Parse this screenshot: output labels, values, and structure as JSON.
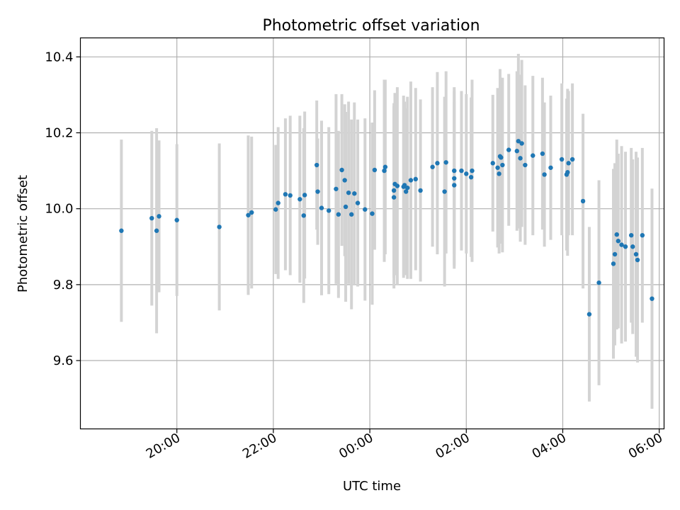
{
  "chart_data": {
    "type": "scatter",
    "title": "Photometric offset variation",
    "xlabel": "UTC time",
    "ylabel": "Photometric offset",
    "xlim": [
      -2.0,
      10.1
    ],
    "ylim": [
      9.42,
      10.45
    ],
    "grid": true,
    "x_ticks": [
      {
        "value": 0,
        "label": "20:00"
      },
      {
        "value": 2,
        "label": "22:00"
      },
      {
        "value": 4,
        "label": "00:00"
      },
      {
        "value": 6,
        "label": "02:00"
      },
      {
        "value": 8,
        "label": "04:00"
      },
      {
        "value": 10,
        "label": "06:00"
      }
    ],
    "y_ticks": [
      {
        "value": 9.6,
        "label": "9.6"
      },
      {
        "value": 9.8,
        "label": "9.8"
      },
      {
        "value": 10.0,
        "label": "10.0"
      },
      {
        "value": 10.2,
        "label": "10.2"
      },
      {
        "value": 10.4,
        "label": "10.4"
      }
    ],
    "x_unit": "hours since 20:00 UTC",
    "colors": {
      "marker": "#1f77b4",
      "errorbar": "#d3d3d3",
      "grid": "#b0b0b0"
    },
    "series": [
      {
        "name": "Photometric offset",
        "points": [
          [
            -1.15,
            9.942,
            0.24
          ],
          [
            -0.52,
            9.975,
            0.23
          ],
          [
            -0.42,
            9.942,
            0.27
          ],
          [
            -0.37,
            9.98,
            0.2
          ],
          [
            0.0,
            9.97,
            0.2
          ],
          [
            0.88,
            9.952,
            0.22
          ],
          [
            1.48,
            9.983,
            0.21
          ],
          [
            1.55,
            9.99,
            0.2
          ],
          [
            2.05,
            9.998,
            0.17
          ],
          [
            2.1,
            10.015,
            0.2
          ],
          [
            2.25,
            10.038,
            0.2
          ],
          [
            2.35,
            10.035,
            0.21
          ],
          [
            2.55,
            10.025,
            0.22
          ],
          [
            2.63,
            9.982,
            0.23
          ],
          [
            2.65,
            10.036,
            0.22
          ],
          [
            2.9,
            10.115,
            0.17
          ],
          [
            2.92,
            10.045,
            0.14
          ],
          [
            3.0,
            10.002,
            0.23
          ],
          [
            3.15,
            9.995,
            0.22
          ],
          [
            3.3,
            10.052,
            0.25
          ],
          [
            3.35,
            9.985,
            0.22
          ],
          [
            3.42,
            10.102,
            0.2
          ],
          [
            3.48,
            10.075,
            0.2
          ],
          [
            3.5,
            10.005,
            0.25
          ],
          [
            3.56,
            10.042,
            0.24
          ],
          [
            3.62,
            9.985,
            0.25
          ],
          [
            3.68,
            10.04,
            0.24
          ],
          [
            3.75,
            10.015,
            0.22
          ],
          [
            3.9,
            9.998,
            0.24
          ],
          [
            4.05,
            9.987,
            0.24
          ],
          [
            4.1,
            10.102,
            0.21
          ],
          [
            4.3,
            10.1,
            0.24
          ],
          [
            4.32,
            10.11,
            0.23
          ],
          [
            4.5,
            10.03,
            0.24
          ],
          [
            4.5,
            10.048,
            0.23
          ],
          [
            4.52,
            10.065,
            0.24
          ],
          [
            4.57,
            10.06,
            0.26
          ],
          [
            4.7,
            10.058,
            0.24
          ],
          [
            4.72,
            10.062,
            0.22
          ],
          [
            4.75,
            10.045,
            0.22
          ],
          [
            4.78,
            10.055,
            0.24
          ],
          [
            4.85,
            10.075,
            0.26
          ],
          [
            4.95,
            10.078,
            0.24
          ],
          [
            5.05,
            10.048,
            0.24
          ],
          [
            5.3,
            10.11,
            0.21
          ],
          [
            5.4,
            10.12,
            0.24
          ],
          [
            5.55,
            10.045,
            0.25
          ],
          [
            5.58,
            10.122,
            0.24
          ],
          [
            5.75,
            10.062,
            0.22
          ],
          [
            5.75,
            10.08,
            0.23
          ],
          [
            5.75,
            10.1,
            0.22
          ],
          [
            5.9,
            10.1,
            0.21
          ],
          [
            6.0,
            10.092,
            0.21
          ],
          [
            6.1,
            10.083,
            0.21
          ],
          [
            6.12,
            10.1,
            0.24
          ],
          [
            6.55,
            10.12,
            0.18
          ],
          [
            6.65,
            10.108,
            0.21
          ],
          [
            6.68,
            10.092,
            0.21
          ],
          [
            6.7,
            10.138,
            0.23
          ],
          [
            6.72,
            10.135,
            0.21
          ],
          [
            6.75,
            10.115,
            0.23
          ],
          [
            6.88,
            10.155,
            0.2
          ],
          [
            7.05,
            10.152,
            0.21
          ],
          [
            7.08,
            10.178,
            0.23
          ],
          [
            7.12,
            10.133,
            0.22
          ],
          [
            7.15,
            10.172,
            0.22
          ],
          [
            7.22,
            10.115,
            0.21
          ],
          [
            7.38,
            10.14,
            0.21
          ],
          [
            7.58,
            10.145,
            0.2
          ],
          [
            7.62,
            10.09,
            0.19
          ],
          [
            7.75,
            10.108,
            0.19
          ],
          [
            7.98,
            10.13,
            0.2
          ],
          [
            8.08,
            10.09,
            0.2
          ],
          [
            8.1,
            10.096,
            0.22
          ],
          [
            8.12,
            10.12,
            0.19
          ],
          [
            8.2,
            10.13,
            0.2
          ],
          [
            8.42,
            10.02,
            0.23
          ],
          [
            8.55,
            9.722,
            0.23
          ],
          [
            8.75,
            9.805,
            0.27
          ],
          [
            9.05,
            9.855,
            0.25
          ],
          [
            9.08,
            9.88,
            0.24
          ],
          [
            9.12,
            9.932,
            0.25
          ],
          [
            9.15,
            9.915,
            0.23
          ],
          [
            9.22,
            9.905,
            0.26
          ],
          [
            9.3,
            9.9,
            0.25
          ],
          [
            9.42,
            9.93,
            0.23
          ],
          [
            9.45,
            9.9,
            0.23
          ],
          [
            9.52,
            9.88,
            0.27
          ],
          [
            9.55,
            9.865,
            0.27
          ],
          [
            9.65,
            9.93,
            0.23
          ],
          [
            9.85,
            9.763,
            0.29
          ]
        ]
      }
    ]
  }
}
